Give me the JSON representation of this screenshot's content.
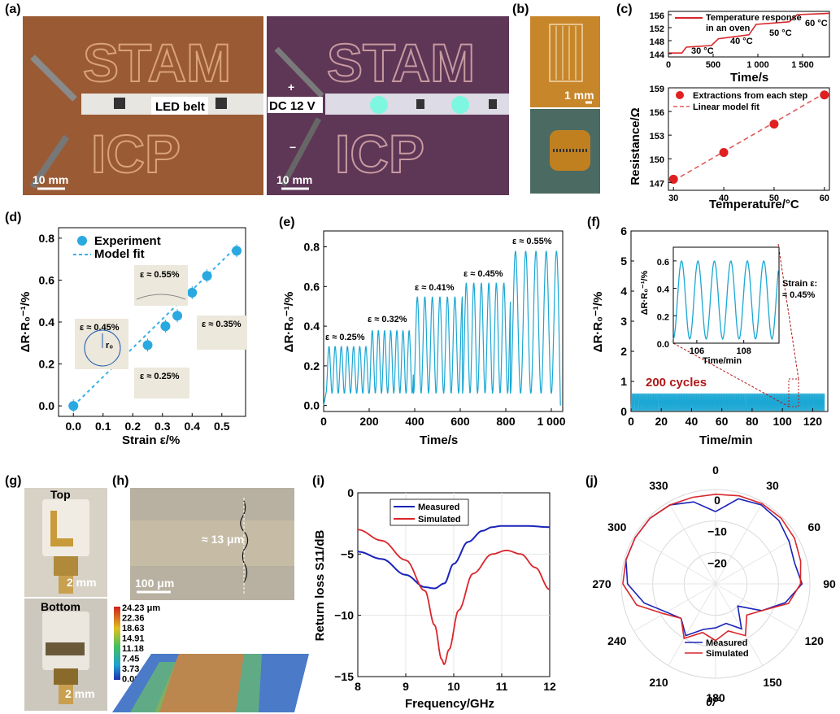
{
  "panels": {
    "a": "(a)",
    "b": "(b)",
    "c": "(c)",
    "d": "(d)",
    "e": "(e)",
    "f": "(f)",
    "g": "(g)",
    "h": "(h)",
    "i": "(i)",
    "j": "(j)"
  },
  "photo_text": {
    "a_left_label": "LED belt",
    "a_left_scale": "10 mm",
    "a_right_plus": "+",
    "a_right_label": "DC 12 V",
    "a_right_minus": "−",
    "a_right_scale": "10 mm",
    "a_letters_top": "STAM",
    "a_letters_bottom": "ICP",
    "b_scale": "1 mm",
    "g_top": "Top",
    "g_bottom": "Bottom",
    "g_scale_top": "2 mm",
    "g_scale_bottom": "2 mm",
    "h_thickness": "≈ 13 μm",
    "h_scale": "100 μm",
    "h_colorbar": [
      "24.23 μm",
      "22.36",
      "18.63",
      "14.91",
      "11.18",
      "7.45",
      "3.73",
      "0.00"
    ]
  },
  "colors": {
    "cyan": "#1aa7d4",
    "red": "#d9262b",
    "blue": "#1a23b8",
    "dark_red": "#b01818"
  },
  "chart_data": [
    {
      "id": "c_top",
      "type": "line",
      "xlabel": "Time/s",
      "ylabel": "Resistance/Ω",
      "xlim": [
        0,
        1800
      ],
      "ylim": [
        143,
        157
      ],
      "xticks": [
        "0",
        "500",
        "1 000",
        "1 500"
      ],
      "yticks": [
        "144",
        "148",
        "152",
        "156"
      ],
      "legend": [
        "Temperature response",
        "in an oven"
      ],
      "annotations": [
        "30 °C",
        "40 °C",
        "50 °C",
        "60 °C"
      ],
      "steps": [
        [
          0,
          144.2
        ],
        [
          150,
          144.2
        ],
        [
          200,
          146.0
        ],
        [
          480,
          146.5
        ],
        [
          560,
          148.6
        ],
        [
          900,
          149.8
        ],
        [
          980,
          153.0
        ],
        [
          1350,
          153.8
        ],
        [
          1440,
          156.0
        ],
        [
          1800,
          156.4
        ]
      ]
    },
    {
      "id": "c_bottom",
      "type": "scatter",
      "xlabel": "Temperature/°C",
      "xlim": [
        29,
        61
      ],
      "ylim": [
        146,
        159
      ],
      "xticks": [
        "30",
        "40",
        "50",
        "60"
      ],
      "yticks": [
        "147",
        "150",
        "153",
        "156",
        "159"
      ],
      "series": [
        {
          "name": "Extractions from each step",
          "x": [
            30,
            40,
            50,
            60
          ],
          "y": [
            147.4,
            150.8,
            154.4,
            158.1
          ]
        },
        {
          "name": "Linear model fit",
          "x": [
            30,
            60
          ],
          "y": [
            147.2,
            158.3
          ]
        }
      ]
    },
    {
      "id": "d",
      "type": "scatter",
      "xlabel": "Strain ε/%",
      "ylabel": "ΔR·R₀⁻¹/%",
      "xlim": [
        -0.05,
        0.58
      ],
      "ylim": [
        -0.05,
        0.85
      ],
      "xticks": [
        "0.0",
        "0.1",
        "0.2",
        "0.3",
        "0.4",
        "0.5"
      ],
      "yticks": [
        "0.0",
        "0.2",
        "0.4",
        "0.6",
        "0.8"
      ],
      "series": [
        {
          "name": "Experiment",
          "x": [
            0.0,
            0.25,
            0.31,
            0.35,
            0.4,
            0.45,
            0.55
          ],
          "y": [
            0.0,
            0.29,
            0.38,
            0.43,
            0.54,
            0.62,
            0.74
          ]
        },
        {
          "name": "Model fit",
          "x": [
            0.0,
            0.55
          ],
          "y": [
            0.0,
            0.76
          ]
        }
      ],
      "insets": [
        "ε ≈ 0.55%",
        "ε ≈ 0.45%",
        "ε ≈ 0.35%",
        "ε ≈ 0.25%"
      ],
      "radius_label": "r₀"
    },
    {
      "id": "e",
      "type": "line",
      "xlabel": "Time/s",
      "ylabel": "ΔR·R₀⁻¹/%",
      "xlim": [
        0,
        1050
      ],
      "ylim": [
        -0.03,
        0.88
      ],
      "xticks": [
        "0",
        "200",
        "400",
        "600",
        "800",
        "1 000"
      ],
      "yticks": [
        "0.0",
        "0.2",
        "0.4",
        "0.6",
        "0.8"
      ],
      "annotations": [
        "ε ≈ 0.25%",
        "ε ≈ 0.32%",
        "ε ≈ 0.41%",
        "ε ≈ 0.45%",
        "ε ≈ 0.55%"
      ],
      "segments": [
        {
          "x0": 10,
          "x1": 200,
          "peak": 0.3,
          "period": 27
        },
        {
          "x0": 200,
          "x1": 395,
          "peak": 0.38,
          "period": 27
        },
        {
          "x0": 395,
          "x1": 610,
          "peak": 0.55,
          "period": 33
        },
        {
          "x0": 610,
          "x1": 820,
          "peak": 0.62,
          "period": 33
        },
        {
          "x0": 820,
          "x1": 1030,
          "peak": 0.78,
          "period": 45
        }
      ]
    },
    {
      "id": "f",
      "type": "line",
      "xlabel": "Time/min",
      "ylabel": "ΔR·R₀⁻¹/%",
      "xlim": [
        0,
        130
      ],
      "ylim": [
        0,
        6
      ],
      "xticks": [
        "0",
        "20",
        "40",
        "60",
        "80",
        "100",
        "120"
      ],
      "yticks": [
        "0",
        "1",
        "2",
        "3",
        "4",
        "5",
        "6"
      ],
      "annotations": [
        "200 cycles",
        "Strain ε:",
        "≈ 0.45%"
      ],
      "band": [
        0.02,
        0.6
      ],
      "inset": {
        "xlabel": "Time/min",
        "ylabel": "ΔR·R₀⁻¹/%",
        "xlim": [
          105,
          109.5
        ],
        "ylim": [
          0,
          0.7
        ],
        "xticks": [
          "106",
          "108"
        ],
        "yticks": [
          "0.0",
          "0.2",
          "0.4",
          "0.6"
        ]
      }
    },
    {
      "id": "i",
      "type": "line",
      "xlabel": "Frequency/GHz",
      "ylabel": "Return loss S11/dB",
      "xlim": [
        8,
        12
      ],
      "ylim": [
        -15,
        0
      ],
      "xticks": [
        "8",
        "9",
        "10",
        "11",
        "12"
      ],
      "yticks": [
        "0",
        "−5",
        "−10",
        "−15"
      ],
      "series": [
        {
          "name": "Measured",
          "x": [
            8,
            8.5,
            9.0,
            9.4,
            9.6,
            9.8,
            10.0,
            10.3,
            10.6,
            10.8,
            11.0,
            11.5,
            12
          ],
          "y": [
            -4.8,
            -5.4,
            -6.7,
            -7.7,
            -7.8,
            -7.4,
            -5.8,
            -4.0,
            -3.1,
            -2.8,
            -2.7,
            -2.7,
            -2.8
          ]
        },
        {
          "name": "Simulated",
          "x": [
            8,
            8.5,
            9.0,
            9.4,
            9.6,
            9.75,
            9.8,
            9.9,
            10.1,
            10.4,
            10.8,
            11.1,
            11.4,
            11.7,
            12
          ],
          "y": [
            -3.0,
            -3.9,
            -5.5,
            -8.0,
            -10.8,
            -13.6,
            -14.0,
            -12.8,
            -9.6,
            -6.6,
            -5.0,
            -4.7,
            -5.0,
            -6.1,
            -7.9
          ]
        }
      ]
    },
    {
      "id": "j",
      "type": "line",
      "xlabel": "θ/°",
      "angle_ticks": [
        "0",
        "30",
        "60",
        "90",
        "120",
        "150",
        "180",
        "210",
        "240",
        "270",
        "300",
        "330"
      ],
      "rlim": [
        -30,
        0
      ],
      "rticks": [
        "0",
        "−10",
        "−20"
      ],
      "series": [
        {
          "name": "Measured",
          "theta": [
            0,
            15,
            30,
            45,
            60,
            75,
            90,
            105,
            120,
            135,
            150,
            165,
            180,
            195,
            210,
            225,
            240,
            255,
            270,
            285,
            300,
            315,
            330,
            345
          ],
          "r": [
            -7,
            -2,
            -1,
            -1.5,
            -3,
            -4,
            -2.5,
            -7,
            -13,
            -20,
            -13.5,
            -17,
            -16,
            -15,
            -11,
            -14.5,
            -12,
            -6.5,
            -2,
            -0.5,
            -0.5,
            -0.5,
            -1,
            -3
          ]
        },
        {
          "name": "Simulated",
          "theta": [
            0,
            15,
            30,
            45,
            60,
            75,
            90,
            105,
            120,
            135,
            150,
            165,
            180,
            195,
            210,
            225,
            240,
            255,
            270,
            285,
            300,
            315,
            330,
            345
          ],
          "r": [
            -1.5,
            -1,
            -0.5,
            -0.5,
            -1,
            -2,
            -3,
            -6,
            -13,
            -16,
            -11,
            -14.5,
            -12,
            -14,
            -10,
            -14.5,
            -11,
            -4,
            -0.5,
            -0.5,
            -0.5,
            -0.5,
            -1,
            -1.5
          ]
        }
      ]
    }
  ]
}
